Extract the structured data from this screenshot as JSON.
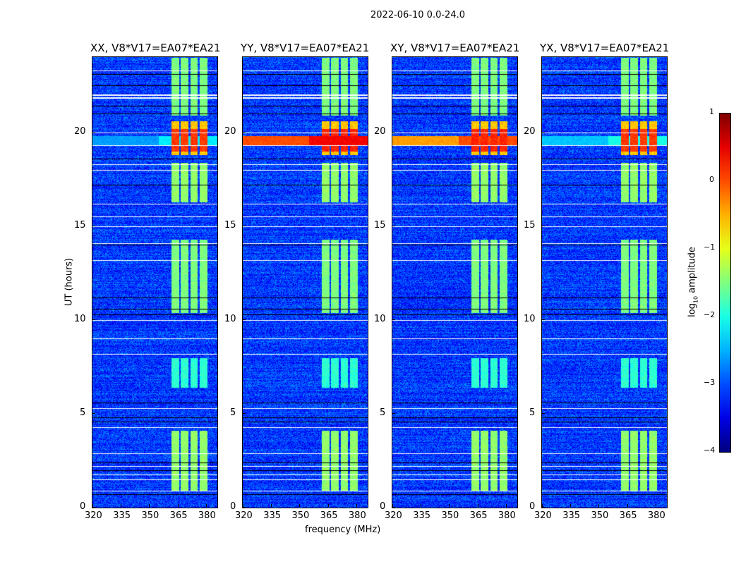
{
  "figure_title": "2022-06-10 0.0-24.0",
  "chart_data": {
    "type": "heatmap",
    "panels": [
      {
        "title": "XX, V8*V17=EA07*EA21",
        "rfi_19h": false,
        "rfi_level": -2.6
      },
      {
        "title": "YY, V8*V17=EA07*EA21",
        "rfi_19h": true,
        "rfi_level": 0.0
      },
      {
        "title": "XY, V8*V17=EA07*EA21",
        "rfi_19h": true,
        "rfi_level": -0.4
      },
      {
        "title": "YX, V8*V17=EA07*EA21",
        "rfi_19h": false,
        "rfi_level": -2.4
      }
    ],
    "xlabel": "frequency (MHz)",
    "ylabel": "UT (hours)",
    "xlim": [
      320,
      386
    ],
    "ylim": [
      0,
      24
    ],
    "xticks": [
      "320",
      "335",
      "350",
      "365",
      "380"
    ],
    "xtick_values": [
      320,
      335,
      350,
      365,
      380
    ],
    "yticks": [
      "0",
      "5",
      "10",
      "15",
      "20"
    ],
    "ytick_values": [
      0,
      5,
      10,
      15,
      20
    ],
    "background_level": -3.1,
    "subbands_mhz": [
      [
        361.5,
        365.5
      ],
      [
        366.5,
        370.5
      ],
      [
        371.5,
        375.5
      ],
      [
        376.5,
        380.5
      ]
    ],
    "active_periods_hours": [
      [
        0.9,
        4.1,
        -1.4
      ],
      [
        6.4,
        8.0,
        -1.9
      ],
      [
        10.4,
        14.3,
        -1.5
      ],
      [
        16.3,
        18.4,
        -1.4
      ],
      [
        18.8,
        20.6,
        0.2
      ],
      [
        20.9,
        24,
        -1.5
      ]
    ],
    "flagged_white_hours": [
      0.9,
      1.5,
      1.75,
      2.2,
      2.9,
      4.3,
      5.3,
      8.2,
      9.0,
      10.0,
      13.2,
      14.1,
      15.0,
      15.5,
      16.2,
      18.0,
      18.3,
      19.3,
      20.0,
      21.85,
      22.0,
      23.3
    ],
    "flagged_black_hours": [
      0.7,
      2.0,
      2.4,
      4.6,
      4.8,
      5.6,
      10.3,
      10.6,
      11.2,
      14.0,
      17.2,
      18.6,
      21.0,
      21.4,
      22.5,
      23.1
    ],
    "colorbar": {
      "label": "log10 amplitude",
      "ticks": [
        "1",
        "0",
        "−1",
        "−2",
        "−3",
        "−4"
      ],
      "tick_values": [
        1,
        0,
        -1,
        -2,
        -3,
        -4
      ],
      "range": [
        -4,
        1
      ],
      "colormap": "jet"
    }
  }
}
